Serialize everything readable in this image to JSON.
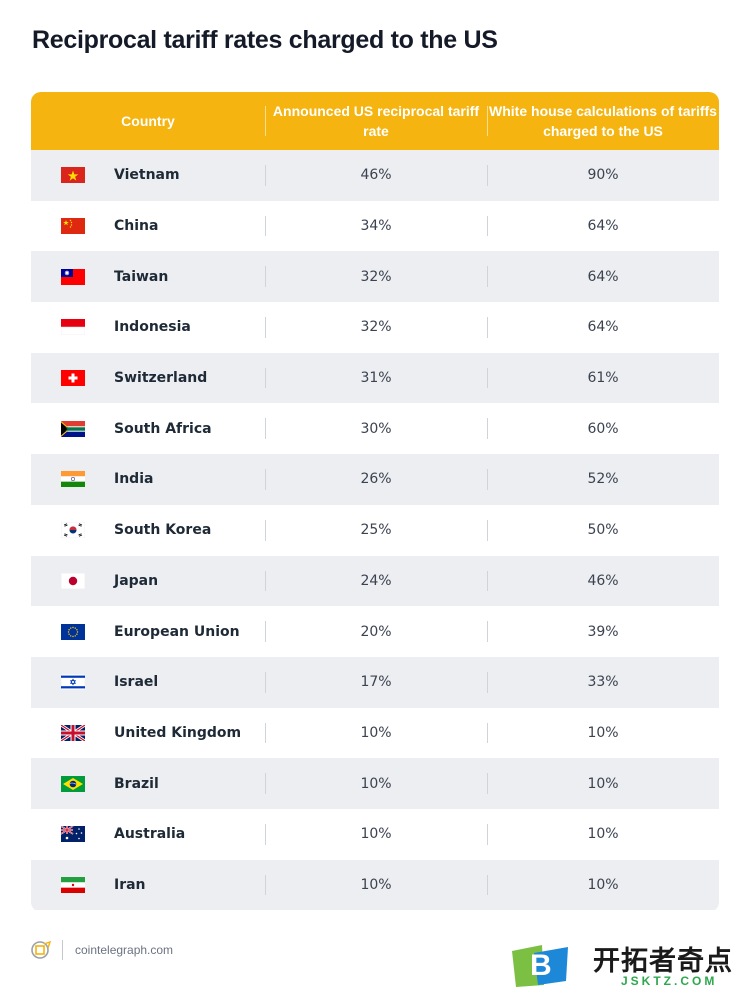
{
  "title": "Reciprocal tariff rates charged to the US",
  "columns": [
    "Country",
    "Announced US reciprocal tariff rate",
    "White house calculations of tariffs charged to the US"
  ],
  "chart_data": {
    "type": "table",
    "title": "Reciprocal tariff rates charged to the US",
    "columns": [
      "Country",
      "Announced US reciprocal tariff rate",
      "White house calculations of tariffs charged to the US"
    ],
    "rows": [
      {
        "country": "Vietnam",
        "flag": "vietnam-flag",
        "announced": "46%",
        "calculated": "90%"
      },
      {
        "country": "China",
        "flag": "china-flag",
        "announced": "34%",
        "calculated": "64%"
      },
      {
        "country": "Taiwan",
        "flag": "taiwan-flag",
        "announced": "32%",
        "calculated": "64%"
      },
      {
        "country": "Indonesia",
        "flag": "indonesia-flag",
        "announced": "32%",
        "calculated": "64%"
      },
      {
        "country": "Switzerland",
        "flag": "switzerland-flag",
        "announced": "31%",
        "calculated": "61%"
      },
      {
        "country": "South Africa",
        "flag": "south-africa-flag",
        "announced": "30%",
        "calculated": "60%"
      },
      {
        "country": "India",
        "flag": "india-flag",
        "announced": "26%",
        "calculated": "52%"
      },
      {
        "country": "South Korea",
        "flag": "south-korea-flag",
        "announced": "25%",
        "calculated": "50%"
      },
      {
        "country": "Japan",
        "flag": "japan-flag",
        "announced": "24%",
        "calculated": "46%"
      },
      {
        "country": "European Union",
        "flag": "european-union-flag",
        "announced": "20%",
        "calculated": "39%"
      },
      {
        "country": "Israel",
        "flag": "israel-flag",
        "announced": "17%",
        "calculated": "33%"
      },
      {
        "country": "United Kingdom",
        "flag": "united-kingdom-flag",
        "announced": "10%",
        "calculated": "10%"
      },
      {
        "country": "Brazil",
        "flag": "brazil-flag",
        "announced": "10%",
        "calculated": "10%"
      },
      {
        "country": "Australia",
        "flag": "australia-flag",
        "announced": "10%",
        "calculated": "10%"
      },
      {
        "country": "Iran",
        "flag": "iran-flag",
        "announced": "10%",
        "calculated": "10%"
      }
    ]
  },
  "colors": {
    "header": "#f5b40f",
    "alt_row": "#eceef1"
  },
  "footer": {
    "source": "cointelegraph.com",
    "logo_icon": "cointelegraph-logo-icon"
  },
  "watermark": {
    "cn": "开拓者奇点",
    "en": "JSKTZ.COM",
    "letter": "B"
  }
}
